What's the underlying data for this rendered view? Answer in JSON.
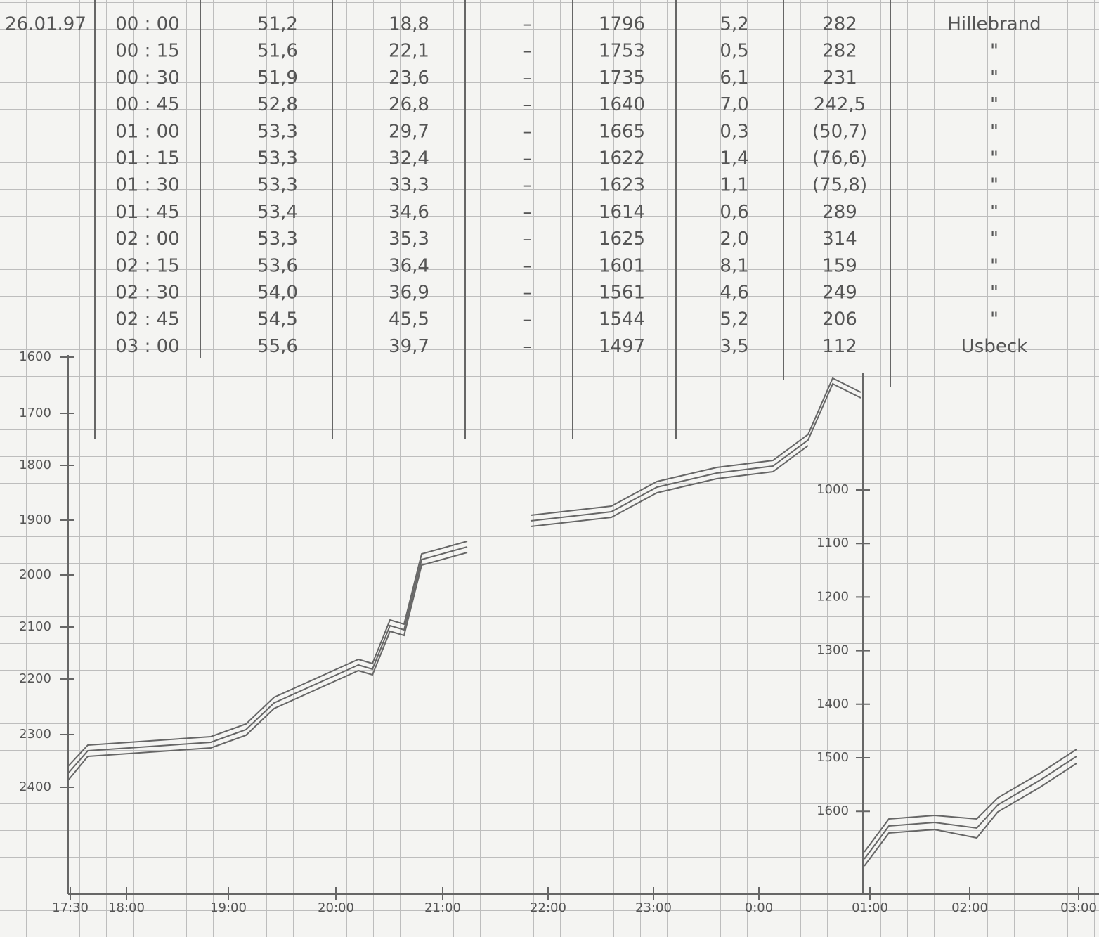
{
  "table": {
    "rows": [
      {
        "date": "26.01.97",
        "time": "00 : 00",
        "cells": [
          "51,2",
          "18,8",
          "–",
          "1796",
          "5,2",
          "282"
        ],
        "note": "Hillebrand"
      },
      {
        "time": "00 : 15",
        "cells": [
          "51,6",
          "22,1",
          "–",
          "1753",
          "0,5",
          "282"
        ],
        "note": "\""
      },
      {
        "time": "00 : 30",
        "cells": [
          "51,9",
          "23,6",
          "–",
          "1735",
          "6,1",
          "231"
        ],
        "note": "\""
      },
      {
        "time": "00 : 45",
        "cells": [
          "52,8",
          "26,8",
          "–",
          "1640",
          "7,0",
          "242,5"
        ],
        "note": "\""
      },
      {
        "time": "01 : 00",
        "cells": [
          "53,3",
          "29,7",
          "–",
          "1665",
          "0,3",
          "(50,7)"
        ],
        "note": "\""
      },
      {
        "time": "01 : 15",
        "cells": [
          "53,3",
          "32,4",
          "–",
          "1622",
          "1,4",
          "(76,6)"
        ],
        "note": "\""
      },
      {
        "time": "01 : 30",
        "cells": [
          "53,3",
          "33,3",
          "–",
          "1623",
          "1,1",
          "(75,8)"
        ],
        "note": "\""
      },
      {
        "time": "01 : 45",
        "cells": [
          "53,4",
          "34,6",
          "–",
          "1614",
          "0,6",
          "289"
        ],
        "note": "\""
      },
      {
        "time": "02 : 00",
        "cells": [
          "53,3",
          "35,3",
          "–",
          "1625",
          "2,0",
          "314"
        ],
        "note": "\""
      },
      {
        "time": "02 : 15",
        "cells": [
          "53,6",
          "36,4",
          "–",
          "1601",
          "8,1",
          "159"
        ],
        "note": "\""
      },
      {
        "time": "02 : 30",
        "cells": [
          "54,0",
          "36,9",
          "–",
          "1561",
          "4,6",
          "249"
        ],
        "note": "\""
      },
      {
        "time": "02 : 45",
        "cells": [
          "54,5",
          "45,5",
          "–",
          "1544",
          "5,2",
          "206"
        ],
        "note": "\""
      },
      {
        "time": "03 : 00",
        "cells": [
          "55,6",
          "39,7",
          "–",
          "1497",
          "3,5",
          "112"
        ],
        "note": "Usbeck"
      }
    ]
  },
  "plot": {
    "left_axis": [
      "1600",
      "1700",
      "1800",
      "1900",
      "2000",
      "2100",
      "2200",
      "2300",
      "2400"
    ],
    "right_axis": [
      "1000",
      "1100",
      "1200",
      "1300",
      "1400",
      "1500",
      "1600"
    ],
    "time_axis": [
      "17:30",
      "18:00",
      "19:00",
      "20:00",
      "21:00",
      "22:00",
      "23:00",
      "0:00",
      "01:00",
      "02:00",
      "03:00"
    ]
  }
}
